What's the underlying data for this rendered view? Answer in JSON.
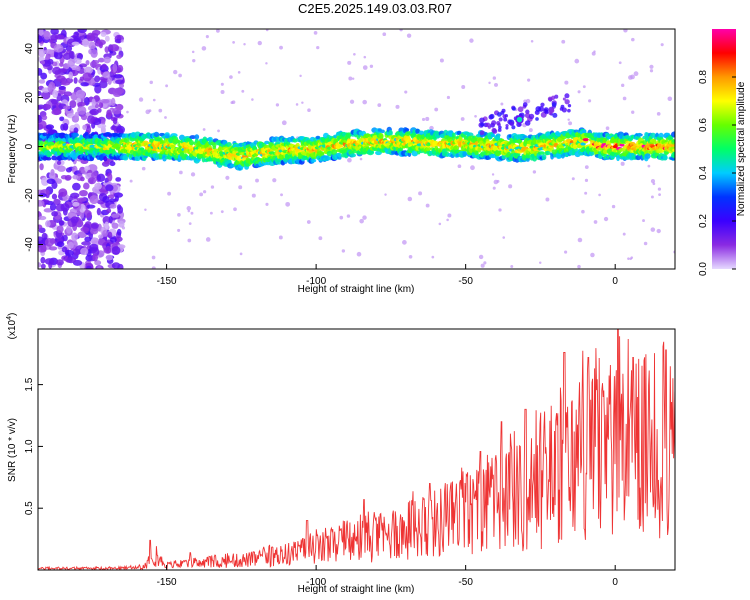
{
  "title": "C2E5.2025.149.03.03.R07",
  "chart_data": [
    {
      "type": "heatmap",
      "xlabel": "Height of straight line (km)",
      "ylabel": "Frequency (Hz)",
      "xlim": [
        -193,
        20
      ],
      "ylim": [
        -50,
        48
      ],
      "x_ticks": [
        "-150",
        "-100",
        "-50",
        "0"
      ],
      "y_ticks": [
        "40",
        "20",
        "0",
        "-20",
        "-40"
      ],
      "colorbar": {
        "label": "Normalized spectral amplitude",
        "range": [
          0,
          1
        ],
        "ticks": [
          "0.0",
          "0.2",
          "0.4",
          "0.6",
          "0.8"
        ],
        "colormap": [
          "#e6d9ff",
          "#8a2be2",
          "#3a00ff",
          "#0033ff",
          "#00ccff",
          "#00ff66",
          "#66ff00",
          "#ffff00",
          "#ff9900",
          "#ff0000",
          "#ff00aa"
        ]
      },
      "ridge": {
        "description_free": true,
        "x": [
          -193,
          -180,
          -165,
          -150,
          -140,
          -130,
          -125,
          -115,
          -100,
          -90,
          -80,
          -70,
          -60,
          -50,
          -40,
          -30,
          -20,
          -10,
          -5,
          0,
          10,
          20
        ],
        "y": [
          0,
          0,
          0,
          0,
          -1,
          -3,
          -4,
          -2,
          -1,
          1,
          2,
          2,
          1,
          1,
          0,
          -1,
          1,
          2,
          0,
          0,
          0,
          0
        ]
      }
    },
    {
      "type": "line",
      "xlabel": "Height of straight line (km)",
      "ylabel": "SNR (10 * v/v)",
      "y_multiplier": "(x10",
      "y_multiplier_exp": "4",
      "y_multiplier_close": ")",
      "xlim": [
        -193,
        20
      ],
      "ylim": [
        0,
        1.95
      ],
      "x_ticks": [
        "-150",
        "-100",
        "-50",
        "0"
      ],
      "y_ticks": [
        "0.5",
        "1.0",
        "1.5"
      ],
      "series": [
        {
          "color": "#ee3333",
          "envelope_x": [
            -193,
            -170,
            -160,
            -157,
            -155,
            -150,
            -140,
            -120,
            -110,
            -100,
            -90,
            -80,
            -70,
            -60,
            -50,
            -40,
            -30,
            -25,
            -20,
            -15,
            -10,
            -5,
            0,
            5,
            10,
            15,
            20
          ],
          "envelope_y": [
            0.02,
            0.02,
            0.03,
            0.05,
            0.22,
            0.06,
            0.08,
            0.14,
            0.2,
            0.27,
            0.33,
            0.4,
            0.5,
            0.6,
            0.72,
            0.85,
            0.95,
            1.1,
            1.2,
            1.35,
            1.45,
            1.45,
            1.5,
            1.55,
            1.6,
            1.5,
            1.5
          ],
          "peaks_x": [
            -155.5,
            -142,
            -103,
            -84,
            -62,
            -45,
            -38,
            -30,
            -17,
            -9,
            1,
            6,
            17
          ],
          "peaks_y": [
            0.24,
            0.14,
            0.4,
            0.57,
            0.7,
            0.96,
            1.2,
            1.3,
            1.76,
            1.72,
            1.95,
            1.72,
            1.78
          ]
        }
      ]
    }
  ]
}
